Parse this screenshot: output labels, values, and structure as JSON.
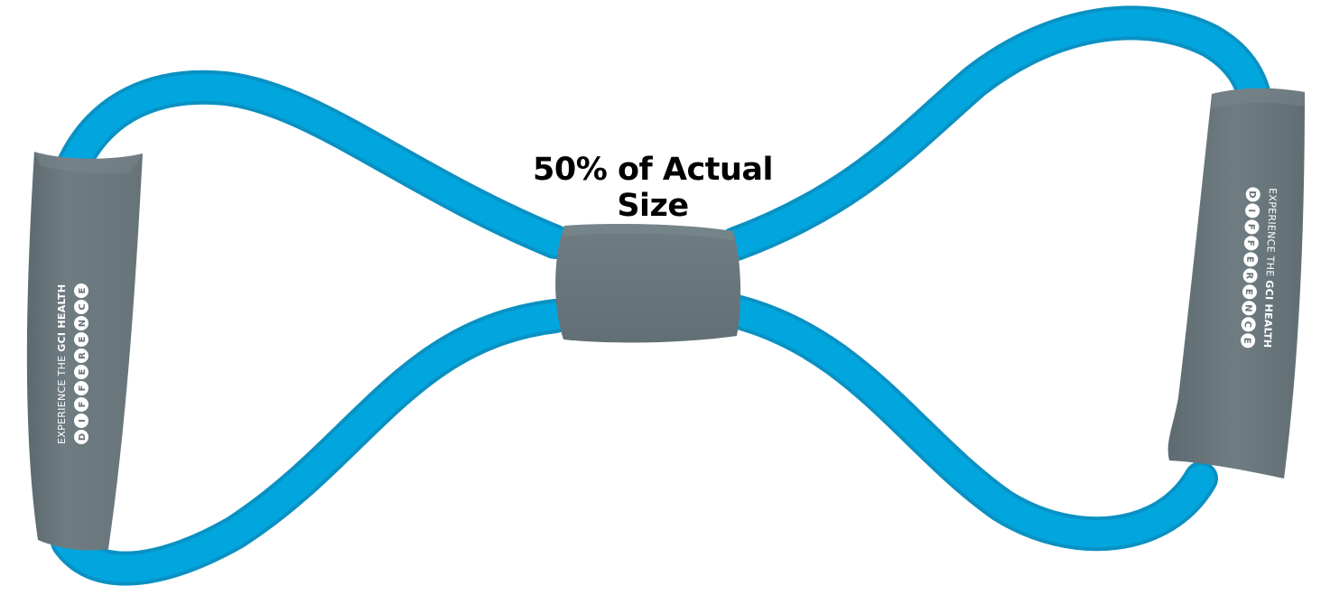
{
  "caption": "50% of Actual Size",
  "product": {
    "type": "figure-8 resistance band",
    "colors": {
      "tube": "#00a6dd",
      "tube_shade": "#0a91c3",
      "handle": "#6c7a80",
      "handle_shade": "#58666c",
      "imprint": "#ffffff",
      "background": "#ffffff"
    },
    "handle_imprint": {
      "line1_prefix": "EXPERIENCE THE ",
      "line1_bold": "GCI HEALTH",
      "line2_letters": [
        "D",
        "I",
        "F",
        "F",
        "E",
        "R",
        "E",
        "N",
        "C",
        "E"
      ]
    }
  }
}
